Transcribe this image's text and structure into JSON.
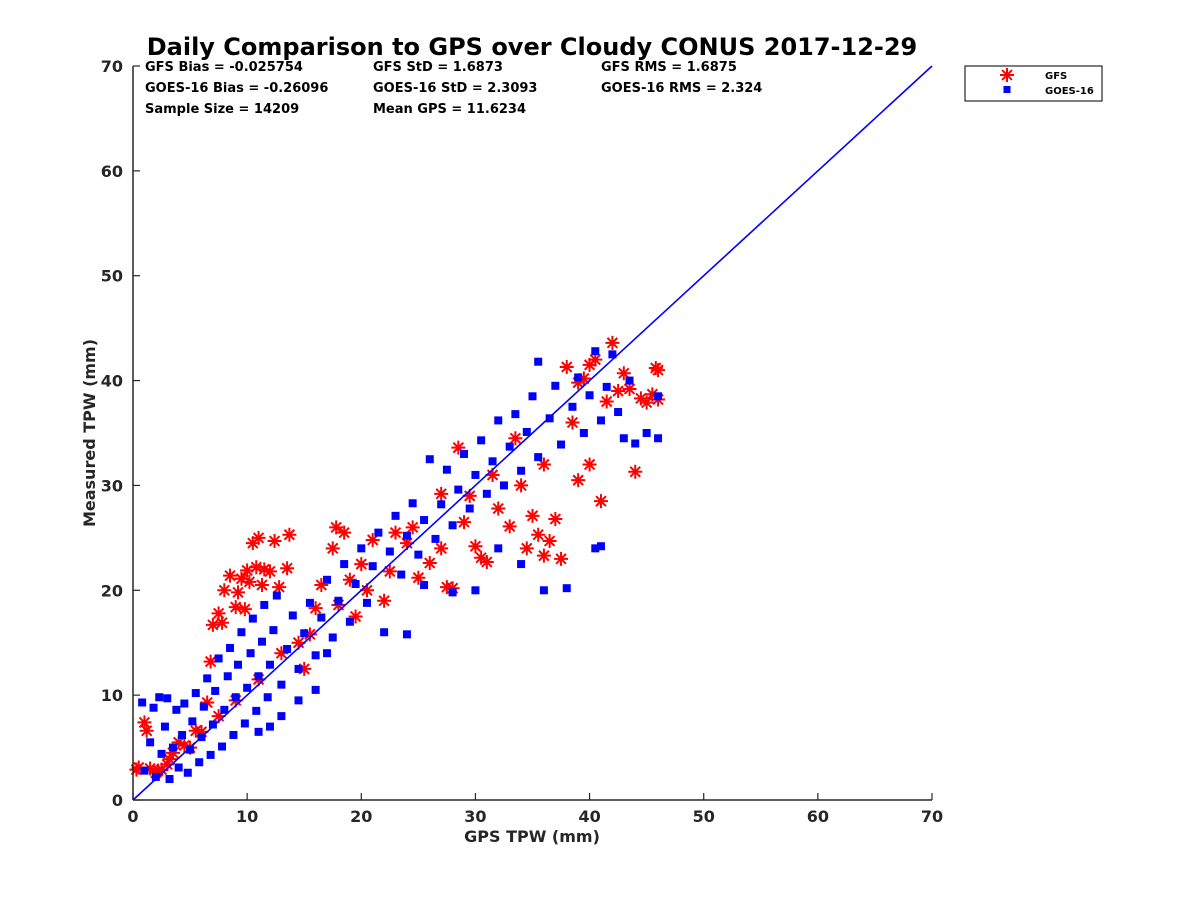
{
  "chart_data": {
    "type": "scatter",
    "title": "Daily Comparison to GPS over Cloudy CONUS 2017-12-29",
    "xlabel": "GPS TPW (mm)",
    "ylabel": "Measured TPW (mm)",
    "xlim": [
      0,
      70
    ],
    "ylim": [
      0,
      70
    ],
    "xticks": [
      0,
      10,
      20,
      30,
      40,
      50,
      60,
      70
    ],
    "yticks": [
      0,
      10,
      20,
      30,
      40,
      50,
      60,
      70
    ],
    "grid": false,
    "legend": "outside-top-right",
    "stats": [
      [
        "GFS Bias = -0.025754",
        "GFS StD = 1.6873",
        "GFS RMS = 1.6875"
      ],
      [
        "GOES-16 Bias = -0.26096",
        "GOES-16 StD = 2.3093",
        "GOES-16 RMS = 2.324"
      ],
      [
        "Sample Size = 14209",
        "Mean GPS = 11.6234",
        ""
      ]
    ],
    "reference_line": {
      "x": [
        0,
        70
      ],
      "y": [
        0,
        70
      ],
      "color": "#0000ff"
    },
    "series": [
      {
        "name": "GFS",
        "marker": "asterisk",
        "color": "#ff0000",
        "points": [
          [
            0.3,
            2.9
          ],
          [
            0.5,
            3.1
          ],
          [
            1.0,
            7.4
          ],
          [
            1.2,
            6.6
          ],
          [
            1.5,
            3.0
          ],
          [
            2.0,
            2.6
          ],
          [
            2.5,
            2.9
          ],
          [
            3.0,
            3.4
          ],
          [
            3.5,
            4.5
          ],
          [
            4.0,
            5.5
          ],
          [
            5.0,
            5.0
          ],
          [
            5.5,
            6.6
          ],
          [
            6.5,
            9.3
          ],
          [
            6.8,
            13.2
          ],
          [
            7.0,
            16.7
          ],
          [
            7.5,
            17.8
          ],
          [
            7.8,
            16.9
          ],
          [
            8.0,
            20.0
          ],
          [
            8.5,
            21.4
          ],
          [
            9.0,
            18.4
          ],
          [
            9.2,
            19.8
          ],
          [
            9.5,
            21.1
          ],
          [
            9.8,
            18.2
          ],
          [
            10.0,
            21.9
          ],
          [
            10.2,
            20.8
          ],
          [
            10.5,
            24.5
          ],
          [
            10.8,
            22.2
          ],
          [
            11.0,
            25.0
          ],
          [
            11.3,
            20.5
          ],
          [
            11.5,
            22.0
          ],
          [
            12.0,
            21.8
          ],
          [
            12.4,
            24.7
          ],
          [
            12.8,
            20.3
          ],
          [
            13.5,
            22.1
          ],
          [
            13.7,
            25.3
          ],
          [
            14.5,
            15.0
          ],
          [
            15.0,
            12.5
          ],
          [
            16.0,
            18.3
          ],
          [
            16.5,
            20.5
          ],
          [
            17.5,
            24.0
          ],
          [
            17.8,
            26.0
          ],
          [
            18.5,
            25.5
          ],
          [
            19.0,
            21.0
          ],
          [
            19.5,
            17.5
          ],
          [
            20.0,
            22.5
          ],
          [
            21.0,
            24.8
          ],
          [
            22.0,
            19.0
          ],
          [
            23.0,
            25.5
          ],
          [
            24.0,
            24.5
          ],
          [
            25.0,
            21.2
          ],
          [
            26.0,
            22.6
          ],
          [
            27.0,
            24.0
          ],
          [
            27.5,
            20.3
          ],
          [
            28.0,
            20.2
          ],
          [
            28.5,
            33.6
          ],
          [
            29.0,
            26.5
          ],
          [
            30.0,
            24.2
          ],
          [
            30.5,
            23.1
          ],
          [
            31.0,
            22.7
          ],
          [
            32.0,
            27.8
          ],
          [
            33.0,
            26.1
          ],
          [
            34.0,
            30.0
          ],
          [
            34.5,
            24.0
          ],
          [
            35.0,
            27.1
          ],
          [
            35.5,
            25.3
          ],
          [
            36.0,
            23.3
          ],
          [
            36.5,
            24.7
          ],
          [
            37.0,
            26.8
          ],
          [
            37.5,
            23.0
          ],
          [
            38.0,
            41.3
          ],
          [
            38.5,
            36.0
          ],
          [
            39.0,
            39.8
          ],
          [
            39.5,
            40.2
          ],
          [
            40.0,
            41.5
          ],
          [
            40.5,
            42.0
          ],
          [
            41.0,
            28.5
          ],
          [
            41.5,
            38.0
          ],
          [
            42.0,
            43.6
          ],
          [
            42.5,
            39.0
          ],
          [
            43.0,
            40.7
          ],
          [
            43.5,
            39.2
          ],
          [
            44.0,
            31.3
          ],
          [
            44.5,
            38.3
          ],
          [
            45.0,
            37.9
          ],
          [
            45.5,
            38.7
          ],
          [
            45.8,
            41.2
          ],
          [
            46.0,
            41.0
          ],
          [
            46.0,
            38.2
          ],
          [
            40.0,
            32.0
          ],
          [
            39.0,
            30.5
          ],
          [
            36.0,
            32.0
          ],
          [
            33.5,
            34.5
          ],
          [
            31.5,
            31.0
          ],
          [
            29.5,
            29.0
          ],
          [
            27.0,
            29.2
          ],
          [
            24.5,
            26.0
          ],
          [
            22.5,
            21.8
          ],
          [
            20.5,
            20.0
          ],
          [
            18.0,
            18.6
          ],
          [
            15.5,
            15.8
          ],
          [
            13.0,
            14.0
          ],
          [
            11.0,
            11.5
          ],
          [
            9.0,
            9.5
          ],
          [
            7.5,
            8.0
          ],
          [
            6.0,
            6.5
          ],
          [
            4.5,
            5.2
          ],
          [
            3.2,
            3.9
          ],
          [
            2.2,
            2.8
          ]
        ]
      },
      {
        "name": "GOES-16",
        "marker": "square",
        "color": "#0000ff",
        "points": [
          [
            0.8,
            9.3
          ],
          [
            1.0,
            2.8
          ],
          [
            1.5,
            5.5
          ],
          [
            1.8,
            8.8
          ],
          [
            2.0,
            2.2
          ],
          [
            2.3,
            9.8
          ],
          [
            2.5,
            4.4
          ],
          [
            2.8,
            7.0
          ],
          [
            3.0,
            9.7
          ],
          [
            3.2,
            2.0
          ],
          [
            3.5,
            5.0
          ],
          [
            3.8,
            8.6
          ],
          [
            4.0,
            3.1
          ],
          [
            4.3,
            6.2
          ],
          [
            4.5,
            9.2
          ],
          [
            4.8,
            2.6
          ],
          [
            5.0,
            4.8
          ],
          [
            5.2,
            7.5
          ],
          [
            5.5,
            10.2
          ],
          [
            5.8,
            3.6
          ],
          [
            6.0,
            6.0
          ],
          [
            6.2,
            8.9
          ],
          [
            6.5,
            11.6
          ],
          [
            6.8,
            4.3
          ],
          [
            7.0,
            7.2
          ],
          [
            7.2,
            10.4
          ],
          [
            7.5,
            13.5
          ],
          [
            7.8,
            5.1
          ],
          [
            8.0,
            8.6
          ],
          [
            8.3,
            11.8
          ],
          [
            8.5,
            14.5
          ],
          [
            8.8,
            6.2
          ],
          [
            9.0,
            9.8
          ],
          [
            9.2,
            12.9
          ],
          [
            9.5,
            16.0
          ],
          [
            9.8,
            7.3
          ],
          [
            10.0,
            10.7
          ],
          [
            10.3,
            14.0
          ],
          [
            10.5,
            17.3
          ],
          [
            10.8,
            8.5
          ],
          [
            11.0,
            11.8
          ],
          [
            11.3,
            15.1
          ],
          [
            11.5,
            18.6
          ],
          [
            11.8,
            9.8
          ],
          [
            12.0,
            12.9
          ],
          [
            12.3,
            16.2
          ],
          [
            12.6,
            19.5
          ],
          [
            13.0,
            11.0
          ],
          [
            13.5,
            14.4
          ],
          [
            14.0,
            17.6
          ],
          [
            14.5,
            12.5
          ],
          [
            15.0,
            15.9
          ],
          [
            15.5,
            18.8
          ],
          [
            16.0,
            13.8
          ],
          [
            16.5,
            17.4
          ],
          [
            17.0,
            21.0
          ],
          [
            17.5,
            15.5
          ],
          [
            18.0,
            19.0
          ],
          [
            18.5,
            22.5
          ],
          [
            19.0,
            17.0
          ],
          [
            19.5,
            20.6
          ],
          [
            20.0,
            24.0
          ],
          [
            20.5,
            18.8
          ],
          [
            21.0,
            22.3
          ],
          [
            21.5,
            25.5
          ],
          [
            22.0,
            16.0
          ],
          [
            22.5,
            23.7
          ],
          [
            23.0,
            27.1
          ],
          [
            23.5,
            21.5
          ],
          [
            24.0,
            25.2
          ],
          [
            24.5,
            28.3
          ],
          [
            25.0,
            23.4
          ],
          [
            25.5,
            26.7
          ],
          [
            26.0,
            32.5
          ],
          [
            26.5,
            24.9
          ],
          [
            27.0,
            28.2
          ],
          [
            27.5,
            31.5
          ],
          [
            28.0,
            26.2
          ],
          [
            28.5,
            29.6
          ],
          [
            29.0,
            33.0
          ],
          [
            29.5,
            27.8
          ],
          [
            30.0,
            31.0
          ],
          [
            30.5,
            34.3
          ],
          [
            31.0,
            29.2
          ],
          [
            31.5,
            32.3
          ],
          [
            32.0,
            36.2
          ],
          [
            32.5,
            30.0
          ],
          [
            33.0,
            33.7
          ],
          [
            33.5,
            36.8
          ],
          [
            34.0,
            31.4
          ],
          [
            34.5,
            35.1
          ],
          [
            35.0,
            38.5
          ],
          [
            35.5,
            32.7
          ],
          [
            36.0,
            20.0
          ],
          [
            36.5,
            36.4
          ],
          [
            37.0,
            39.5
          ],
          [
            37.5,
            33.9
          ],
          [
            38.0,
            20.2
          ],
          [
            38.5,
            37.5
          ],
          [
            39.0,
            40.3
          ],
          [
            39.5,
            35.0
          ],
          [
            40.0,
            38.6
          ],
          [
            40.5,
            42.8
          ],
          [
            41.0,
            36.2
          ],
          [
            41.5,
            39.4
          ],
          [
            42.0,
            42.5
          ],
          [
            42.5,
            37.0
          ],
          [
            43.0,
            34.5
          ],
          [
            43.5,
            40.0
          ],
          [
            44.0,
            34.0
          ],
          [
            45.0,
            35.0
          ],
          [
            46.0,
            34.5
          ],
          [
            46.0,
            38.5
          ],
          [
            41.0,
            24.2
          ],
          [
            40.5,
            24.0
          ],
          [
            35.5,
            41.8
          ],
          [
            32.0,
            24.0
          ],
          [
            34.0,
            22.5
          ],
          [
            30.0,
            20.0
          ],
          [
            28.0,
            19.8
          ],
          [
            25.5,
            20.5
          ],
          [
            24.0,
            15.8
          ],
          [
            17.0,
            14.0
          ],
          [
            16.0,
            10.5
          ],
          [
            14.5,
            9.5
          ],
          [
            13.0,
            8.0
          ],
          [
            12.0,
            7.0
          ],
          [
            11.0,
            6.5
          ]
        ]
      }
    ]
  }
}
